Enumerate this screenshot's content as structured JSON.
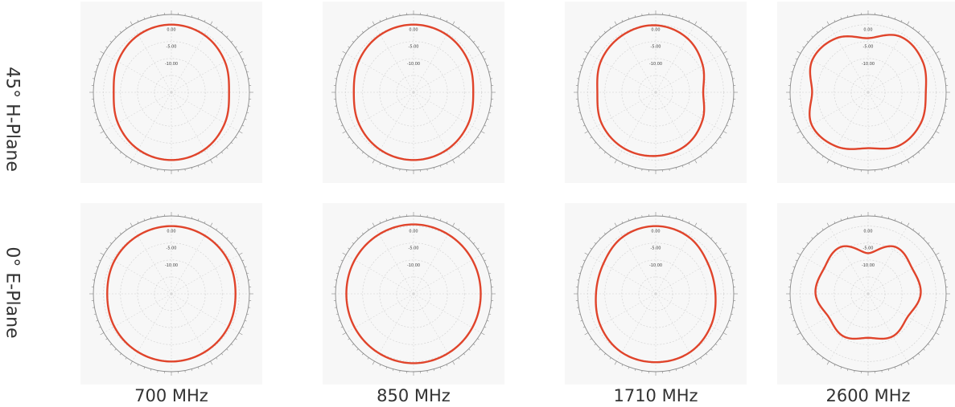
{
  "row_labels": [
    "45° H-Plane",
    "0° E-Plane"
  ],
  "col_labels": [
    "700 MHz",
    "850 MHz",
    "1710 MHz",
    "2600 MHz"
  ],
  "colors": {
    "pattern": "#e0442b",
    "ring": "#8a8a8a",
    "grid": "#cfcfcf",
    "background": "#f7f7f7"
  },
  "chart_data": [
    {
      "type": "line",
      "subtype": "polar",
      "row": "45° H-Plane",
      "frequency": "700 MHz",
      "radial_ticks": [
        "0.00",
        "-5.00",
        "-10.00"
      ],
      "rlim": [
        -20,
        3
      ],
      "series": [
        {
          "theta_deg": [
            0,
            30,
            60,
            90,
            120,
            150,
            180,
            210,
            240,
            270,
            300,
            330
          ],
          "r_db": [
            0,
            -0.5,
            -1.8,
            -3,
            -1.8,
            -0.5,
            0,
            -0.5,
            -1.8,
            -3,
            -1.8,
            -0.5
          ]
        }
      ]
    },
    {
      "type": "line",
      "subtype": "polar",
      "row": "45° H-Plane",
      "frequency": "850 MHz",
      "radial_ticks": [
        "0.00",
        "-5.00",
        "-10.00"
      ],
      "rlim": [
        -20,
        3
      ],
      "series": [
        {
          "theta_deg": [
            0,
            30,
            60,
            90,
            120,
            150,
            180,
            210,
            240,
            270,
            300,
            330
          ],
          "r_db": [
            0,
            -0.4,
            -1.4,
            -2.4,
            -1.4,
            -0.4,
            0,
            -0.4,
            -1.4,
            -2.4,
            -1.4,
            -0.4
          ]
        }
      ]
    },
    {
      "type": "line",
      "subtype": "polar",
      "row": "45° H-Plane",
      "frequency": "1710 MHz",
      "radial_ticks": [
        "0.00",
        "-5.00",
        "-10.00"
      ],
      "rlim": [
        -20,
        3
      ],
      "series": [
        {
          "theta_deg": [
            0,
            30,
            60,
            90,
            120,
            150,
            180,
            210,
            240,
            270,
            300,
            330
          ],
          "r_db": [
            -0.2,
            -1.5,
            -4,
            -6,
            -4,
            -2,
            -1.2,
            -1,
            -1.6,
            -2.8,
            -1.4,
            -0.5
          ]
        }
      ]
    },
    {
      "type": "line",
      "subtype": "polar",
      "row": "45° H-Plane",
      "frequency": "2600 MHz",
      "radial_ticks": [
        "0.00",
        "-5.00",
        "-10.00"
      ],
      "rlim": [
        -20,
        3
      ],
      "series": [
        {
          "theta_deg": [
            0,
            30,
            60,
            90,
            120,
            150,
            180,
            210,
            240,
            270,
            300,
            330
          ],
          "r_db": [
            -4,
            -1,
            -1.5,
            -3,
            -2,
            -1.8,
            -3.5,
            -1.5,
            -0.8,
            -3.5,
            -1,
            -1.5
          ]
        }
      ]
    },
    {
      "type": "line",
      "subtype": "polar",
      "row": "0° E-Plane",
      "frequency": "700 MHz",
      "radial_ticks": [
        "0.00",
        "-5.00",
        "-10.00"
      ],
      "rlim": [
        -20,
        3
      ],
      "series": [
        {
          "theta_deg": [
            0,
            30,
            60,
            90,
            120,
            150,
            180,
            210,
            240,
            270,
            300,
            330
          ],
          "r_db": [
            0,
            -0.2,
            -0.6,
            -1.1,
            -0.6,
            -0.2,
            0,
            -0.2,
            -0.6,
            -1.1,
            -0.6,
            -0.2
          ]
        }
      ]
    },
    {
      "type": "line",
      "subtype": "polar",
      "row": "0° E-Plane",
      "frequency": "850 MHz",
      "radial_ticks": [
        "0.00",
        "-5.00",
        "-10.00"
      ],
      "rlim": [
        -20,
        3
      ],
      "series": [
        {
          "theta_deg": [
            0,
            30,
            60,
            90,
            120,
            150,
            180,
            210,
            240,
            270,
            300,
            330
          ],
          "r_db": [
            0.5,
            0.3,
            0,
            -0.2,
            0,
            0.3,
            0.5,
            0.3,
            0,
            -0.2,
            0,
            0.3
          ]
        }
      ]
    },
    {
      "type": "line",
      "subtype": "polar",
      "row": "0° E-Plane",
      "frequency": "1710 MHz",
      "radial_ticks": [
        "0.00",
        "-5.00",
        "-10.00"
      ],
      "rlim": [
        -20,
        3
      ],
      "series": [
        {
          "theta_deg": [
            0,
            30,
            60,
            90,
            120,
            150,
            180,
            210,
            240,
            270,
            300,
            330
          ],
          "r_db": [
            0,
            -0.6,
            -2.2,
            -2.4,
            -1.2,
            0,
            0.2,
            0,
            -1.2,
            -2.4,
            -2.2,
            -0.6
          ]
        }
      ]
    },
    {
      "type": "line",
      "subtype": "polar",
      "row": "0° E-Plane",
      "frequency": "2600 MHz",
      "radial_ticks": [
        "0.00",
        "-5.00",
        "-10.00"
      ],
      "rlim": [
        -20,
        3
      ],
      "series": [
        {
          "theta_deg": [
            0,
            30,
            60,
            90,
            120,
            150,
            180,
            210,
            240,
            270,
            300,
            330
          ],
          "r_db": [
            -8,
            -4,
            -5,
            -4.5,
            -6.5,
            -5.5,
            -7,
            -5.5,
            -6.5,
            -4.5,
            -5,
            -4
          ]
        }
      ]
    }
  ]
}
